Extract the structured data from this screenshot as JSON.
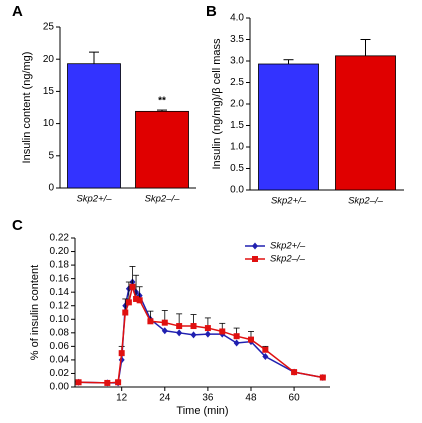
{
  "chart_data": [
    {
      "type": "bar",
      "panel": "A",
      "ylabel": "Insulin content (ng/mg)",
      "categories": [
        "Skp2+/–",
        "Skp2–/–"
      ],
      "values": [
        19.3,
        11.9
      ],
      "errors": [
        1.8,
        0.2
      ],
      "colors": [
        "#3333ff",
        "#e00000"
      ],
      "annotation": "**",
      "ylim": [
        0,
        25
      ],
      "yticks": [
        0,
        5,
        10,
        15,
        20,
        25
      ]
    },
    {
      "type": "bar",
      "panel": "B",
      "ylabel": "Insulin (ng/mg)/β cell mass",
      "categories": [
        "Skp2+/–",
        "Skp2–/–"
      ],
      "values": [
        2.93,
        3.12
      ],
      "errors": [
        0.1,
        0.38
      ],
      "colors": [
        "#3333ff",
        "#e00000"
      ],
      "ylim": [
        0,
        4
      ],
      "yticks": [
        {
          "value": 0,
          "label": "0.0"
        },
        {
          "value": 0.5,
          "label": "0.5"
        },
        {
          "value": 1,
          "label": "1.0"
        },
        {
          "value": 1.5,
          "label": "1.5"
        },
        {
          "value": 2,
          "label": "2.0"
        },
        {
          "value": 2.5,
          "label": "2.5"
        },
        {
          "value": 3,
          "label": "3.0"
        },
        {
          "value": 3.5,
          "label": "3.5"
        },
        {
          "value": 4,
          "label": "4.0"
        }
      ]
    },
    {
      "type": "line",
      "panel": "C",
      "xlabel": "Time (min)",
      "ylabel": "% of insulin content",
      "x": [
        0,
        8,
        11,
        12,
        13,
        14,
        15,
        16,
        17,
        20,
        24,
        28,
        32,
        36,
        40,
        44,
        48,
        52,
        60,
        68
      ],
      "series": [
        {
          "name": "Skp2+/–",
          "color": "#2020b0",
          "marker": "diamond",
          "values": [
            0.007,
            0.006,
            0.006,
            0.04,
            0.12,
            0.145,
            0.155,
            0.14,
            0.135,
            0.1,
            0.083,
            0.08,
            0.077,
            0.078,
            0.078,
            0.065,
            0.067,
            0.045,
            0.022,
            0.014
          ]
        },
        {
          "name": "Skp2–/–",
          "color": "#e01010",
          "marker": "square",
          "values": [
            0.007,
            0.006,
            0.007,
            0.05,
            0.11,
            0.125,
            0.148,
            0.13,
            0.128,
            0.097,
            0.095,
            0.09,
            0.09,
            0.087,
            0.082,
            0.075,
            0.07,
            0.055,
            0.022,
            0.014
          ],
          "errors": [
            0.001,
            0.001,
            0.002,
            0.01,
            0.02,
            0.03,
            0.03,
            0.035,
            0.02,
            0.015,
            0.018,
            0.018,
            0.017,
            0.015,
            0.012,
            0.012,
            0.012,
            0.005,
            0.002,
            0.002
          ]
        }
      ],
      "xlim": [
        -1,
        70
      ],
      "xticks": [
        12,
        24,
        36,
        48,
        60
      ],
      "ylim": [
        0,
        0.22
      ],
      "yticks": [
        {
          "value": 0,
          "label": "0.00"
        },
        {
          "value": 0.02,
          "label": "0.02"
        },
        {
          "value": 0.04,
          "label": "0.04"
        },
        {
          "value": 0.06,
          "label": "0.06"
        },
        {
          "value": 0.08,
          "label": "0.08"
        },
        {
          "value": 0.1,
          "label": "0.10"
        },
        {
          "value": 0.12,
          "label": "0.12"
        },
        {
          "value": 0.14,
          "label": "0.14"
        },
        {
          "value": 0.16,
          "label": "0.16"
        },
        {
          "value": 0.18,
          "label": "0.18"
        },
        {
          "value": 0.2,
          "label": "0.20"
        },
        {
          "value": 0.22,
          "label": "0.22"
        }
      ],
      "legend": "upper right"
    }
  ]
}
